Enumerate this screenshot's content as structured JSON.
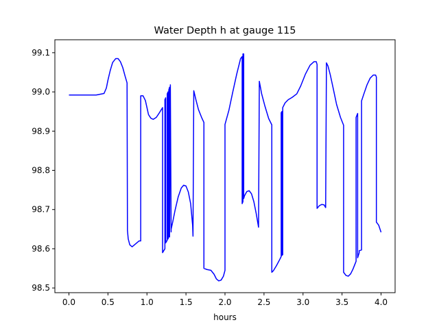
{
  "chart_data": {
    "type": "line",
    "title": "Water Depth h at gauge 115",
    "xlabel": "hours",
    "ylabel": "",
    "xlim": [
      -0.18,
      4.18
    ],
    "ylim": [
      98.488,
      99.133
    ],
    "xticks": [
      0.0,
      0.5,
      1.0,
      1.5,
      2.0,
      2.5,
      3.0,
      3.5,
      4.0
    ],
    "xtick_labels": [
      "0.0",
      "0.5",
      "1.0",
      "1.5",
      "2.0",
      "2.5",
      "3.0",
      "3.5",
      "4.0"
    ],
    "yticks": [
      98.5,
      98.6,
      98.7,
      98.8,
      98.9,
      99.0,
      99.1
    ],
    "ytick_labels": [
      "98.5",
      "98.6",
      "98.7",
      "98.8",
      "98.9",
      "99.0",
      "99.1"
    ],
    "grid": false,
    "series": [
      {
        "color": "#0000ff",
        "x": [
          0.0,
          0.2,
          0.35,
          0.45,
          0.48,
          0.5,
          0.53,
          0.56,
          0.6,
          0.63,
          0.66,
          0.69,
          0.72,
          0.745,
          0.75,
          0.76,
          0.78,
          0.81,
          0.84,
          0.87,
          0.9,
          0.92,
          0.92,
          0.95,
          0.98,
          1.0,
          1.02,
          1.05,
          1.08,
          1.12,
          1.16,
          1.2,
          1.2,
          1.23,
          1.23,
          1.24,
          1.24,
          1.26,
          1.26,
          1.27,
          1.27,
          1.28,
          1.28,
          1.29,
          1.29,
          1.3,
          1.31,
          1.31,
          1.33,
          1.36,
          1.4,
          1.44,
          1.47,
          1.5,
          1.53,
          1.56,
          1.585,
          1.59,
          1.6,
          1.63,
          1.66,
          1.7,
          1.73,
          1.73,
          1.77,
          1.82,
          1.86,
          1.89,
          1.92,
          1.95,
          1.98,
          2.0,
          2.0,
          2.05,
          2.1,
          2.15,
          2.2,
          2.22,
          2.22,
          2.23,
          2.23,
          2.24,
          2.24,
          2.25,
          2.28,
          2.31,
          2.34,
          2.37,
          2.4,
          2.43,
          2.43,
          2.44,
          2.47,
          2.51,
          2.56,
          2.6,
          2.6,
          2.62,
          2.66,
          2.7,
          2.72,
          2.72,
          2.73,
          2.73,
          2.74,
          2.74,
          2.77,
          2.81,
          2.86,
          2.92,
          2.97,
          3.03,
          3.09,
          3.14,
          3.17,
          3.18,
          3.18,
          3.21,
          3.24,
          3.27,
          3.29,
          3.29,
          3.3,
          3.32,
          3.35,
          3.39,
          3.43,
          3.48,
          3.52,
          3.52,
          3.55,
          3.58,
          3.61,
          3.64,
          3.66,
          3.68,
          3.68,
          3.7,
          3.7,
          3.72,
          3.72,
          3.75,
          3.75,
          3.78,
          3.82,
          3.86,
          3.9,
          3.93,
          3.94,
          3.94,
          3.97,
          4.0
        ],
        "y": [
          98.992,
          98.992,
          98.992,
          98.996,
          99.01,
          99.03,
          99.055,
          99.075,
          99.085,
          99.085,
          99.077,
          99.062,
          99.04,
          99.023,
          98.647,
          98.625,
          98.61,
          98.605,
          98.61,
          98.615,
          98.62,
          98.62,
          98.99,
          98.99,
          98.978,
          98.96,
          98.942,
          98.933,
          98.93,
          98.935,
          98.947,
          98.96,
          98.59,
          98.6,
          98.98,
          98.985,
          98.615,
          98.622,
          98.995,
          99.0,
          98.625,
          98.632,
          99.005,
          99.012,
          98.63,
          99.018,
          98.643,
          98.65,
          98.668,
          98.698,
          98.732,
          98.755,
          98.762,
          98.76,
          98.745,
          98.715,
          98.66,
          98.632,
          99.003,
          98.978,
          98.955,
          98.935,
          98.922,
          98.55,
          98.547,
          98.545,
          98.535,
          98.523,
          98.518,
          98.52,
          98.53,
          98.545,
          98.917,
          98.953,
          99.0,
          99.045,
          99.085,
          99.09,
          98.715,
          98.72,
          99.097,
          99.097,
          98.728,
          98.735,
          98.746,
          98.748,
          98.74,
          98.72,
          98.69,
          98.655,
          98.655,
          99.027,
          98.995,
          98.965,
          98.932,
          98.916,
          98.54,
          98.544,
          98.557,
          98.572,
          98.58,
          98.947,
          98.95,
          98.583,
          98.585,
          98.96,
          98.972,
          98.98,
          98.986,
          98.995,
          99.015,
          99.045,
          99.068,
          99.077,
          99.077,
          99.07,
          98.703,
          98.71,
          98.713,
          98.712,
          98.705,
          98.705,
          99.074,
          99.066,
          99.043,
          99.006,
          98.968,
          98.935,
          98.915,
          98.54,
          98.532,
          98.53,
          98.536,
          98.548,
          98.558,
          98.568,
          98.935,
          98.945,
          98.577,
          98.59,
          98.595,
          98.597,
          98.977,
          98.995,
          99.018,
          99.035,
          99.043,
          99.043,
          99.038,
          98.668,
          98.66,
          98.642
        ]
      }
    ]
  }
}
